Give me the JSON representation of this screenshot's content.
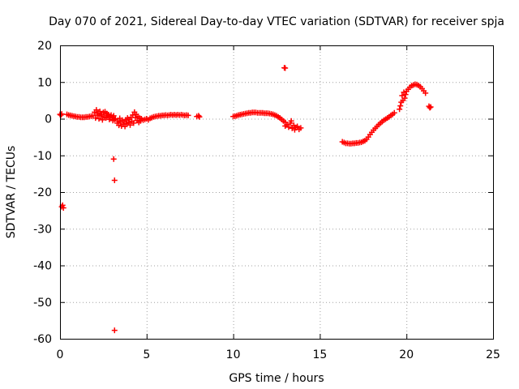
{
  "chart_data": {
    "type": "scatter",
    "title": "Day 070 of 2021, Sidereal Day-to-day VTEC variation (SDTVAR) for receiver spja",
    "xlabel": "GPS time / hours",
    "ylabel": "SDTVAR / TECUs",
    "xlim": [
      0,
      25
    ],
    "ylim": [
      -60,
      20
    ],
    "xticks": [
      0,
      5,
      10,
      15,
      20,
      25
    ],
    "yticks": [
      -60,
      -50,
      -40,
      -30,
      -20,
      -10,
      0,
      10,
      20
    ],
    "grid": true,
    "marker": "+",
    "color": "#ff0000",
    "series": [
      {
        "name": "SDTVAR",
        "points": [
          [
            0.0,
            1.2
          ],
          [
            0.05,
            1.0
          ],
          [
            0.1,
            1.3
          ],
          [
            0.1,
            -24.0
          ],
          [
            0.15,
            -23.6
          ],
          [
            0.2,
            -24.3
          ],
          [
            0.4,
            1.2
          ],
          [
            0.5,
            1.0
          ],
          [
            0.6,
            0.9
          ],
          [
            0.7,
            0.8
          ],
          [
            0.8,
            0.7
          ],
          [
            0.9,
            0.6
          ],
          [
            1.0,
            0.5
          ],
          [
            1.1,
            0.5
          ],
          [
            1.2,
            0.4
          ],
          [
            1.3,
            0.4
          ],
          [
            1.4,
            0.4
          ],
          [
            1.5,
            0.5
          ],
          [
            1.6,
            0.5
          ],
          [
            1.7,
            0.6
          ],
          [
            1.8,
            0.7
          ],
          [
            1.9,
            0.8
          ],
          [
            2.0,
            1.8
          ],
          [
            2.05,
            0.2
          ],
          [
            2.1,
            2.4
          ],
          [
            2.15,
            1.0
          ],
          [
            2.2,
            1.5
          ],
          [
            2.25,
            0.0
          ],
          [
            2.3,
            2.0
          ],
          [
            2.35,
            0.8
          ],
          [
            2.4,
            1.2
          ],
          [
            2.45,
            -0.3
          ],
          [
            2.5,
            1.7
          ],
          [
            2.55,
            0.5
          ],
          [
            2.6,
            1.9
          ],
          [
            2.65,
            0.2
          ],
          [
            2.7,
            1.4
          ],
          [
            2.75,
            0.9
          ],
          [
            2.8,
            1.1
          ],
          [
            2.85,
            -0.2
          ],
          [
            2.9,
            0.6
          ],
          [
            2.95,
            1.0
          ],
          [
            3.0,
            0.3
          ],
          [
            3.05,
            -0.5
          ],
          [
            3.1,
            0.8
          ],
          [
            3.15,
            -0.2
          ],
          [
            3.1,
            -11.0
          ],
          [
            3.15,
            -16.8
          ],
          [
            3.15,
            -57.7
          ],
          [
            3.2,
            0.0
          ],
          [
            3.3,
            -1.2
          ],
          [
            3.35,
            -0.6
          ],
          [
            3.4,
            -1.8
          ],
          [
            3.45,
            0.1
          ],
          [
            3.5,
            -0.9
          ],
          [
            3.55,
            -2.0
          ],
          [
            3.6,
            -0.4
          ],
          [
            3.65,
            -1.5
          ],
          [
            3.7,
            -0.8
          ],
          [
            3.75,
            -2.1
          ],
          [
            3.8,
            -0.3
          ],
          [
            3.85,
            -1.3
          ],
          [
            3.9,
            0.2
          ],
          [
            3.95,
            -1.0
          ],
          [
            4.0,
            -0.2
          ],
          [
            4.05,
            -1.7
          ],
          [
            4.1,
            0.4
          ],
          [
            4.15,
            -0.7
          ],
          [
            4.2,
            1.0
          ],
          [
            4.25,
            -1.2
          ],
          [
            4.3,
            1.8
          ],
          [
            4.35,
            0.3
          ],
          [
            4.4,
            1.2
          ],
          [
            4.45,
            -0.5
          ],
          [
            4.5,
            0.6
          ],
          [
            4.55,
            -1.0
          ],
          [
            4.6,
            0.2
          ],
          [
            4.65,
            -0.6
          ],
          [
            4.7,
            0.0
          ],
          [
            4.8,
            -0.4
          ],
          [
            4.9,
            -0.2
          ],
          [
            5.0,
            0.0
          ],
          [
            5.1,
            -0.3
          ],
          [
            5.2,
            0.1
          ],
          [
            5.3,
            0.3
          ],
          [
            5.4,
            0.5
          ],
          [
            5.5,
            0.6
          ],
          [
            5.6,
            0.7
          ],
          [
            5.7,
            0.8
          ],
          [
            5.8,
            0.8
          ],
          [
            5.9,
            0.9
          ],
          [
            6.0,
            0.9
          ],
          [
            6.1,
            1.0
          ],
          [
            6.2,
            0.9
          ],
          [
            6.3,
            1.0
          ],
          [
            6.4,
            1.1
          ],
          [
            6.5,
            1.0
          ],
          [
            6.6,
            1.1
          ],
          [
            6.7,
            1.0
          ],
          [
            6.8,
            1.1
          ],
          [
            6.9,
            1.0
          ],
          [
            7.0,
            1.1
          ],
          [
            7.1,
            1.0
          ],
          [
            7.2,
            0.9
          ],
          [
            7.3,
            1.0
          ],
          [
            7.4,
            0.9
          ],
          [
            7.9,
            0.6
          ],
          [
            8.0,
            0.8
          ],
          [
            8.05,
            0.5
          ],
          [
            10.0,
            0.6
          ],
          [
            10.1,
            0.7
          ],
          [
            10.2,
            0.8
          ],
          [
            10.3,
            1.0
          ],
          [
            10.4,
            1.1
          ],
          [
            10.5,
            1.2
          ],
          [
            10.6,
            1.3
          ],
          [
            10.7,
            1.4
          ],
          [
            10.8,
            1.5
          ],
          [
            10.9,
            1.6
          ],
          [
            11.0,
            1.6
          ],
          [
            11.1,
            1.7
          ],
          [
            11.2,
            1.7
          ],
          [
            11.3,
            1.7
          ],
          [
            11.4,
            1.6
          ],
          [
            11.5,
            1.6
          ],
          [
            11.6,
            1.6
          ],
          [
            11.7,
            1.6
          ],
          [
            11.8,
            1.5
          ],
          [
            11.9,
            1.5
          ],
          [
            12.0,
            1.5
          ],
          [
            12.1,
            1.4
          ],
          [
            12.2,
            1.3
          ],
          [
            12.3,
            1.2
          ],
          [
            12.4,
            1.0
          ],
          [
            12.5,
            0.8
          ],
          [
            12.6,
            0.5
          ],
          [
            12.7,
            0.2
          ],
          [
            12.8,
            -0.2
          ],
          [
            12.9,
            -0.6
          ],
          [
            13.0,
            -1.0
          ],
          [
            12.95,
            13.9
          ],
          [
            13.0,
            13.8
          ],
          [
            13.0,
            -2.0
          ],
          [
            13.1,
            -1.6
          ],
          [
            13.2,
            -2.3
          ],
          [
            13.3,
            -1.2
          ],
          [
            13.35,
            -0.6
          ],
          [
            13.4,
            -2.6
          ],
          [
            13.5,
            -1.8
          ],
          [
            13.55,
            -3.0
          ],
          [
            13.6,
            -2.4
          ],
          [
            13.7,
            -2.1
          ],
          [
            13.8,
            -2.9
          ],
          [
            13.9,
            -2.5
          ],
          [
            16.3,
            -6.3
          ],
          [
            16.4,
            -6.5
          ],
          [
            16.5,
            -6.7
          ],
          [
            16.6,
            -6.7
          ],
          [
            16.7,
            -6.8
          ],
          [
            16.8,
            -6.8
          ],
          [
            16.9,
            -6.7
          ],
          [
            17.0,
            -6.7
          ],
          [
            17.1,
            -6.6
          ],
          [
            17.2,
            -6.6
          ],
          [
            17.3,
            -6.5
          ],
          [
            17.4,
            -6.4
          ],
          [
            17.5,
            -6.2
          ],
          [
            17.6,
            -6.0
          ],
          [
            17.7,
            -5.6
          ],
          [
            17.8,
            -5.0
          ],
          [
            17.9,
            -4.3
          ],
          [
            18.0,
            -3.7
          ],
          [
            18.1,
            -3.1
          ],
          [
            18.2,
            -2.6
          ],
          [
            18.3,
            -2.1
          ],
          [
            18.4,
            -1.6
          ],
          [
            18.5,
            -1.2
          ],
          [
            18.6,
            -0.8
          ],
          [
            18.7,
            -0.4
          ],
          [
            18.8,
            -0.1
          ],
          [
            18.9,
            0.2
          ],
          [
            19.0,
            0.5
          ],
          [
            19.1,
            0.9
          ],
          [
            19.2,
            1.2
          ],
          [
            19.3,
            1.6
          ],
          [
            19.6,
            2.6
          ],
          [
            19.65,
            3.5
          ],
          [
            19.7,
            4.5
          ],
          [
            19.75,
            6.3
          ],
          [
            19.8,
            5.0
          ],
          [
            19.85,
            7.2
          ],
          [
            19.9,
            5.6
          ],
          [
            19.95,
            6.6
          ],
          [
            20.0,
            7.5
          ],
          [
            20.1,
            8.0
          ],
          [
            20.2,
            8.6
          ],
          [
            20.3,
            9.0
          ],
          [
            20.4,
            9.2
          ],
          [
            20.5,
            9.4
          ],
          [
            20.6,
            9.3
          ],
          [
            20.7,
            9.1
          ],
          [
            20.8,
            8.7
          ],
          [
            20.9,
            8.2
          ],
          [
            21.0,
            7.6
          ],
          [
            21.1,
            7.0
          ],
          [
            21.3,
            3.4
          ],
          [
            21.35,
            3.0
          ],
          [
            21.4,
            3.2
          ]
        ]
      }
    ]
  }
}
